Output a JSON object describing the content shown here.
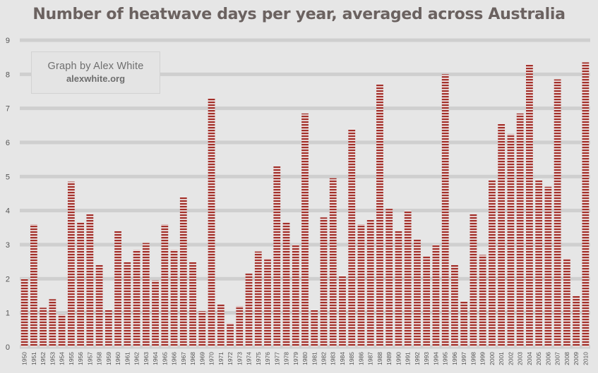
{
  "chart_data": {
    "type": "bar",
    "title": "Number of heatwave days per year, averaged across Australia",
    "xlabel": "",
    "ylabel": "",
    "ylim": [
      0,
      9
    ],
    "yticks": [
      0,
      1,
      2,
      3,
      4,
      5,
      6,
      7,
      8,
      9
    ],
    "grid": true,
    "bar_color": "#a3302a",
    "categories": [
      "1950",
      "1951",
      "1952",
      "1953",
      "1954",
      "1955",
      "1956",
      "1957",
      "1958",
      "1959",
      "1960",
      "1961",
      "1962",
      "1963",
      "1964",
      "1965",
      "1966",
      "1967",
      "1968",
      "1969",
      "1970",
      "1971",
      "1972",
      "1973",
      "1974",
      "1975",
      "1976",
      "1977",
      "1978",
      "1979",
      "1980",
      "1981",
      "1982",
      "1983",
      "1984",
      "1985",
      "1986",
      "1987",
      "1988",
      "1989",
      "1990",
      "1991",
      "1992",
      "1993",
      "1994",
      "1995",
      "1996",
      "1997",
      "1998",
      "1999",
      "2000",
      "2001",
      "2002",
      "2003",
      "2004",
      "2005",
      "2006",
      "2007",
      "2008",
      "2009",
      "2010"
    ],
    "values": [
      2.0,
      3.6,
      1.15,
      1.4,
      0.95,
      4.85,
      3.65,
      3.9,
      2.4,
      1.1,
      3.4,
      2.5,
      2.85,
      3.05,
      1.95,
      3.6,
      2.85,
      4.4,
      2.5,
      1.05,
      7.3,
      1.25,
      0.7,
      1.2,
      2.15,
      2.8,
      2.6,
      5.3,
      3.65,
      3.0,
      6.85,
      1.1,
      3.8,
      4.95,
      2.1,
      6.4,
      3.6,
      3.75,
      7.7,
      4.05,
      3.4,
      4.0,
      3.15,
      2.65,
      3.0,
      8.0,
      2.4,
      1.35,
      3.9,
      2.7,
      4.9,
      6.55,
      6.25,
      6.85,
      8.3,
      4.9,
      4.7,
      7.85,
      2.6,
      1.5,
      8.35
    ]
  },
  "credit": {
    "line1": "Graph by Alex White",
    "line2": "alexwhite.org"
  }
}
